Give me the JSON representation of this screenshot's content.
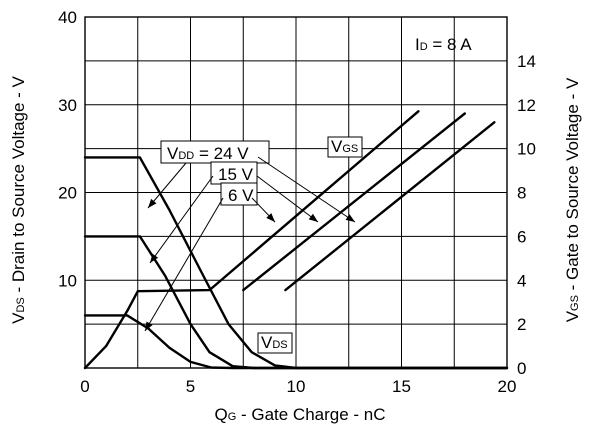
{
  "chart_data": {
    "type": "line",
    "xlabel_main": "Q",
    "xlabel_sub": "G",
    "xlabel_rest": " - Gate Charge - nC",
    "ylabel_left_main": "V",
    "ylabel_left_sub": "DS",
    "ylabel_left_rest": " - Drain to Source Voltage - V",
    "ylabel_right_main": "V",
    "ylabel_right_sub": "GS",
    "ylabel_right_rest": " - Gate to Source Voltage - V",
    "xlim": [
      0,
      20
    ],
    "ylim_left": [
      0,
      40
    ],
    "ylim_right": [
      0,
      16
    ],
    "x_ticks": [
      "0",
      "5",
      "10",
      "15",
      "20"
    ],
    "y_left_ticks": [
      "10",
      "20",
      "30",
      "40"
    ],
    "y_right_ticks": [
      "0",
      "2",
      "4",
      "6",
      "8",
      "10",
      "12",
      "14"
    ],
    "grid": true,
    "series": [
      {
        "group": "VDS",
        "vdd": "24 V",
        "axis": "left",
        "points": [
          [
            0,
            24
          ],
          [
            2.6,
            24
          ],
          [
            4,
            18
          ],
          [
            5.5,
            11
          ],
          [
            6.8,
            5
          ],
          [
            7.9,
            1.8
          ],
          [
            9,
            0.3
          ],
          [
            10,
            0
          ],
          [
            20,
            0
          ]
        ]
      },
      {
        "group": "VDS",
        "vdd": "15 V",
        "axis": "left",
        "points": [
          [
            0,
            15
          ],
          [
            2.6,
            15
          ],
          [
            3.8,
            10.5
          ],
          [
            5,
            5
          ],
          [
            5.9,
            1.8
          ],
          [
            7,
            0.2
          ],
          [
            8,
            0
          ],
          [
            20,
            0
          ]
        ]
      },
      {
        "group": "VDS",
        "vdd": "6 V",
        "axis": "left",
        "points": [
          [
            0,
            6
          ],
          [
            2,
            6
          ],
          [
            3,
            4.5
          ],
          [
            4,
            2.3
          ],
          [
            5,
            0.7
          ],
          [
            6,
            0.05
          ],
          [
            7,
            0
          ],
          [
            20,
            0
          ]
        ]
      },
      {
        "group": "VGS",
        "vdd": "6 V",
        "axis": "right",
        "points": [
          [
            0,
            0
          ],
          [
            1,
            1
          ],
          [
            2,
            2.6
          ],
          [
            2.5,
            3.5
          ],
          [
            5.9,
            3.55
          ],
          [
            15.8,
            11.7
          ]
        ]
      },
      {
        "group": "VGS",
        "vdd": "15 V",
        "axis": "right",
        "points": [
          [
            7.5,
            3.55
          ],
          [
            18,
            11.6
          ]
        ]
      },
      {
        "group": "VGS",
        "vdd": "24 V",
        "axis": "right",
        "points": [
          [
            9.5,
            3.55
          ],
          [
            19.4,
            11.2
          ]
        ]
      }
    ],
    "annotations": {
      "vdd_main": "V",
      "vdd_sub": "DD",
      "vdd_24": " = 24 V",
      "vdd_15": "15 V",
      "vdd_6": "6 V",
      "vgs_main": "V",
      "vgs_sub": "GS",
      "vds_main": "V",
      "vds_sub": "DS",
      "id_main": "I",
      "id_sub": "D",
      "id_rest": " = 8 A"
    }
  }
}
